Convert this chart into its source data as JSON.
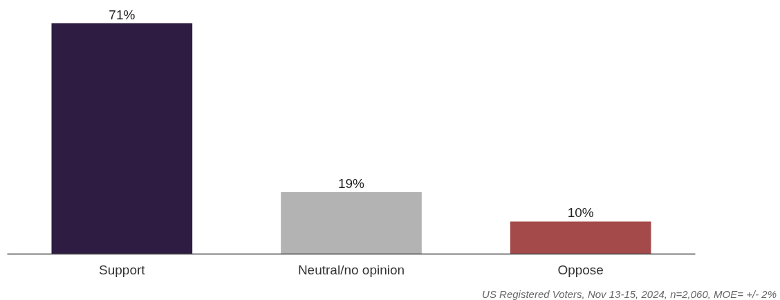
{
  "chart_data": {
    "type": "bar",
    "categories": [
      "Support",
      "Neutral/no opinion",
      "Oppose"
    ],
    "values": [
      71,
      19,
      10
    ],
    "colors": [
      "#2e1c42",
      "#b3b3b3",
      "#a54a4a"
    ],
    "value_labels": [
      "71%",
      "19%",
      "10%"
    ],
    "grid": false,
    "annotations": [
      "US Registered Voters, Nov 13-15, 2024, n=2,060, MOE= +/- 2%"
    ]
  }
}
